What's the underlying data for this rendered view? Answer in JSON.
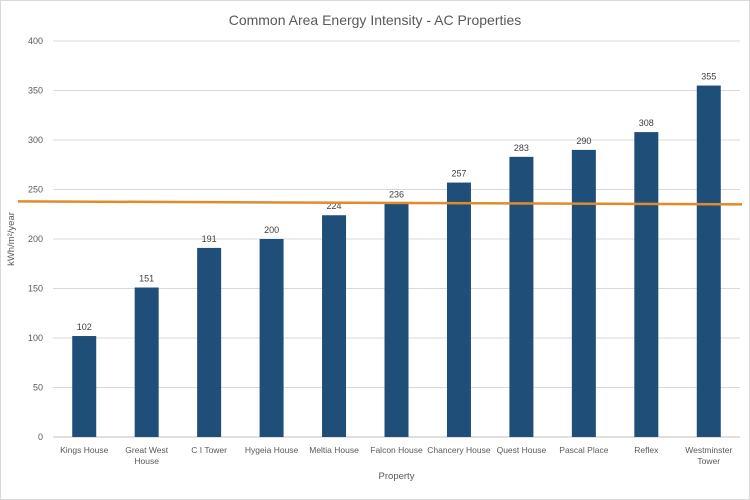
{
  "chart_data": {
    "type": "bar",
    "title": "Common Area Energy Intensity - AC Properties",
    "xlabel": "Property",
    "ylabel": "kWh/m²/year",
    "ylim": [
      0,
      400
    ],
    "yticks": [
      0,
      50,
      100,
      150,
      200,
      250,
      300,
      350,
      400
    ],
    "grid": true,
    "categories": [
      [
        "Kings House"
      ],
      [
        "Great West",
        "House"
      ],
      [
        "C I Tower"
      ],
      [
        "Hygeia House"
      ],
      [
        "Meltia House"
      ],
      [
        "Falcon House"
      ],
      [
        "Chancery House"
      ],
      [
        "Quest House"
      ],
      [
        "Pascal Place"
      ],
      [
        "Reflex"
      ],
      [
        "Westminster",
        "Tower"
      ]
    ],
    "values": [
      102,
      151,
      191,
      200,
      224,
      236,
      257,
      283,
      290,
      308,
      355
    ],
    "reference_line": {
      "value": 236,
      "color": "#e38b2b"
    },
    "bar_color": "#1f4e79"
  }
}
